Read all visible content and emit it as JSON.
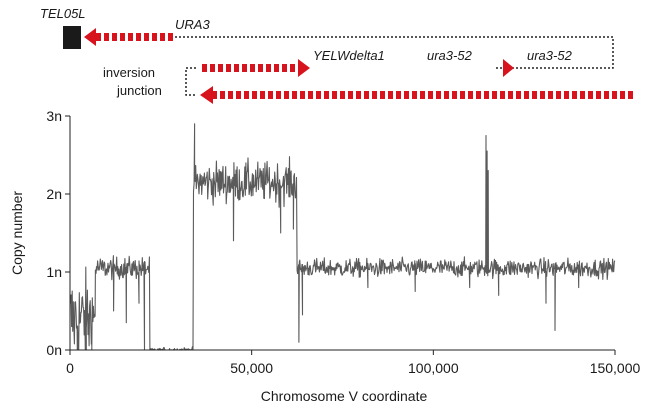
{
  "chart_data": {
    "type": "line",
    "xlabel": "Chromosome V coordinate",
    "ylabel": "Copy number",
    "xlim": [
      0,
      150000
    ],
    "ylim": [
      0,
      3
    ],
    "x_ticks": [
      0,
      50000,
      100000,
      150000
    ],
    "x_tick_labels": [
      "0",
      "50,000",
      "100,000",
      "150,000"
    ],
    "y_ticks": [
      0,
      1,
      2,
      3
    ],
    "y_tick_labels": [
      "0n",
      "1n",
      "2n",
      "3n"
    ],
    "grid": false,
    "series_color": "#5a5a5a",
    "segments": [
      {
        "x_start": 0,
        "x_end": 7000,
        "copy_number": 0.4,
        "noise": 0.5,
        "note": "low, dropping to 0n"
      },
      {
        "x_start": 7000,
        "x_end": 22000,
        "copy_number": 1.05,
        "noise": 0.12
      },
      {
        "x_start": 22000,
        "x_end": 25000,
        "copy_number": 0.0,
        "noise": 0.02
      },
      {
        "x_start": 25000,
        "x_end": 34000,
        "copy_number": 0.0,
        "noise": 0.03
      },
      {
        "x_start": 34000,
        "x_end": 62500,
        "copy_number": 2.15,
        "noise": 0.22
      },
      {
        "x_start": 62500,
        "x_end": 150000,
        "copy_number": 1.05,
        "noise": 0.1
      }
    ],
    "spikes": [
      {
        "x": 114500,
        "y": 2.75
      },
      {
        "x": 114800,
        "y": 2.55
      },
      {
        "x": 115100,
        "y": 2.3
      },
      {
        "x": 34300,
        "y": 2.9
      },
      {
        "x": 61500,
        "y": 1.55
      }
    ],
    "dips": [
      {
        "x": 2000,
        "y": 0.0
      },
      {
        "x": 4500,
        "y": 0.0
      },
      {
        "x": 6000,
        "y": 0.15
      },
      {
        "x": 12000,
        "y": 0.5
      },
      {
        "x": 15500,
        "y": 0.35
      },
      {
        "x": 19000,
        "y": 0.6
      },
      {
        "x": 20500,
        "y": 0.0
      },
      {
        "x": 45000,
        "y": 1.4
      },
      {
        "x": 58000,
        "y": 1.5
      },
      {
        "x": 63000,
        "y": 0.1
      },
      {
        "x": 64000,
        "y": 0.45
      },
      {
        "x": 82000,
        "y": 0.8
      },
      {
        "x": 95000,
        "y": 0.75
      },
      {
        "x": 110000,
        "y": 0.8
      },
      {
        "x": 118000,
        "y": 0.7
      },
      {
        "x": 131000,
        "y": 0.6
      },
      {
        "x": 133500,
        "y": 0.25
      },
      {
        "x": 140000,
        "y": 0.8
      }
    ]
  },
  "diagram": {
    "colors": {
      "arrow": "#d7141d",
      "telomere": "#1a1a1a",
      "dotted_line": "#222222"
    },
    "labels": {
      "tel05l": "TEL05L",
      "ura3": "URA3",
      "yelwdelta1": "YELWdelta1",
      "ura3_52_left": "ura3-52",
      "ura3_52_right": "ura3-52",
      "inversion_junction_line1": "inversion",
      "inversion_junction_line2": "junction"
    }
  }
}
